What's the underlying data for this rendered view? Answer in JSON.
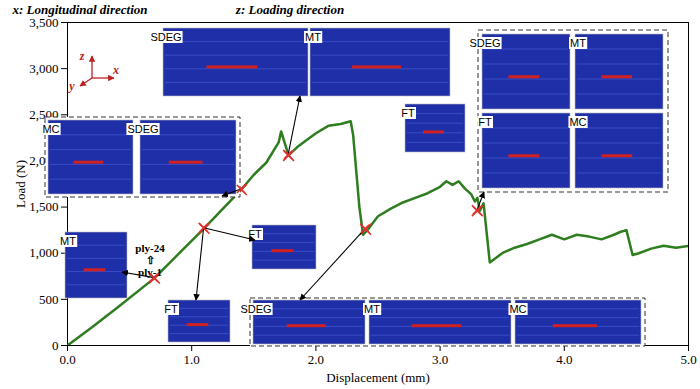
{
  "chart_data": {
    "type": "line",
    "x_label": "Displacement (mm)",
    "y_label": "Load (N)",
    "xlim": [
      0,
      5
    ],
    "ylim": [
      0,
      3500
    ],
    "xticks": [
      0,
      1,
      2,
      3,
      4,
      5
    ],
    "yticks": [
      0,
      500,
      1000,
      1500,
      2000,
      2500,
      3000,
      3500
    ],
    "color": "#2e7d1f",
    "x": [
      0,
      0.2,
      0.4,
      0.7,
      0.9,
      1.1,
      1.3,
      1.4,
      1.5,
      1.6,
      1.7,
      1.72,
      1.78,
      1.85,
      2.0,
      2.1,
      2.2,
      2.28,
      2.3,
      2.35,
      2.38,
      2.42,
      2.5,
      2.6,
      2.7,
      2.8,
      2.9,
      3.0,
      3.05,
      3.1,
      3.15,
      3.2,
      3.25,
      3.28,
      3.3,
      3.32,
      3.35,
      3.4,
      3.5,
      3.6,
      3.7,
      3.8,
      3.9,
      4.0,
      4.1,
      4.2,
      4.3,
      4.4,
      4.45,
      4.5,
      4.55,
      4.6,
      4.7,
      4.8,
      4.9,
      5.0
    ],
    "values": [
      0,
      200,
      410,
      730,
      1000,
      1270,
      1550,
      1690,
      1850,
      1980,
      2200,
      2320,
      2060,
      2150,
      2300,
      2380,
      2400,
      2430,
      2280,
      1500,
      1200,
      1260,
      1400,
      1480,
      1550,
      1600,
      1650,
      1720,
      1780,
      1740,
      1780,
      1700,
      1640,
      1560,
      1600,
      1460,
      1540,
      900,
      1000,
      1060,
      1100,
      1150,
      1200,
      1150,
      1200,
      1180,
      1150,
      1200,
      1230,
      1250,
      980,
      1000,
      1050,
      1080,
      1060,
      1080
    ],
    "markers": {
      "color": "#e03030",
      "marker": "x",
      "x": [
        0.7,
        1.1,
        1.4,
        1.78,
        2.4,
        3.3
      ],
      "values": [
        730,
        1270,
        1690,
        2060,
        1260,
        1460
      ]
    },
    "annotations": [
      "x: Longitudinal direction",
      "z: Loading direction"
    ],
    "axis_triad": [
      "z",
      "y",
      "x"
    ],
    "ply_labels": [
      "ply-24",
      "⇧",
      "ply-1"
    ],
    "panels": [
      [
        "SDEG",
        "MT",
        "FT"
      ],
      [
        "MC",
        "SDEG"
      ],
      [
        "MT"
      ],
      [
        "FT"
      ],
      [
        "FT"
      ],
      [
        "SDEG",
        "MT",
        "MC"
      ],
      [
        "SDEG",
        "MT",
        "FT",
        "MC"
      ]
    ]
  }
}
